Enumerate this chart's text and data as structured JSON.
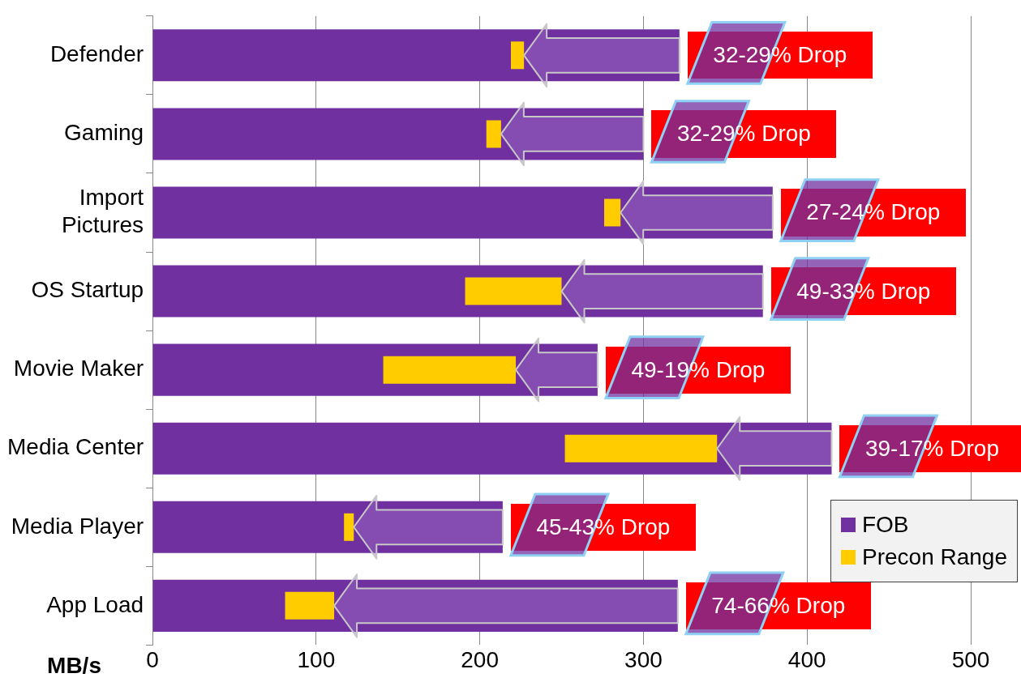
{
  "chart_data": {
    "type": "bar",
    "orientation": "horizontal",
    "xlabel": "MB/s",
    "categories": [
      "Defender",
      "Gaming",
      "Import Pictures",
      "OS Startup",
      "Movie Maker",
      "Media Center",
      "Media Player",
      "App Load"
    ],
    "series": [
      {
        "name": "FOB",
        "color": "#7030a0",
        "values": [
          322,
          300,
          379,
          373,
          272,
          415,
          214,
          321
        ]
      },
      {
        "name": "Precon Range",
        "color": "#ffcc00",
        "base": [
          219,
          204,
          276,
          191,
          141,
          252,
          117,
          81
        ],
        "values": [
          8,
          9,
          10,
          59,
          81,
          93,
          6,
          30
        ]
      }
    ],
    "xlim": [
      0,
      500
    ],
    "xticks": [
      0,
      100,
      200,
      300,
      400,
      500
    ],
    "grid": "x",
    "legend": "bottom right",
    "annotations": [
      {
        "text": "32-29% Drop",
        "x": 322,
        "y": "Defender"
      },
      {
        "text": "32-29% Drop",
        "x": 300,
        "y": "Gaming"
      },
      {
        "text": "27-24% Drop",
        "x": 379,
        "y": "Import Pictures"
      },
      {
        "text": "49-33% Drop",
        "x": 373,
        "y": "OS Startup"
      },
      {
        "text": "49-19% Drop",
        "x": 272,
        "y": "Movie Maker"
      },
      {
        "text": "39-17% Drop",
        "x": 415,
        "y": "Media Center"
      },
      {
        "text": "45-43% Drop",
        "x": 214,
        "y": "Media Player"
      },
      {
        "text": "74-66% Drop",
        "x": 321,
        "y": "App Load"
      }
    ]
  }
}
